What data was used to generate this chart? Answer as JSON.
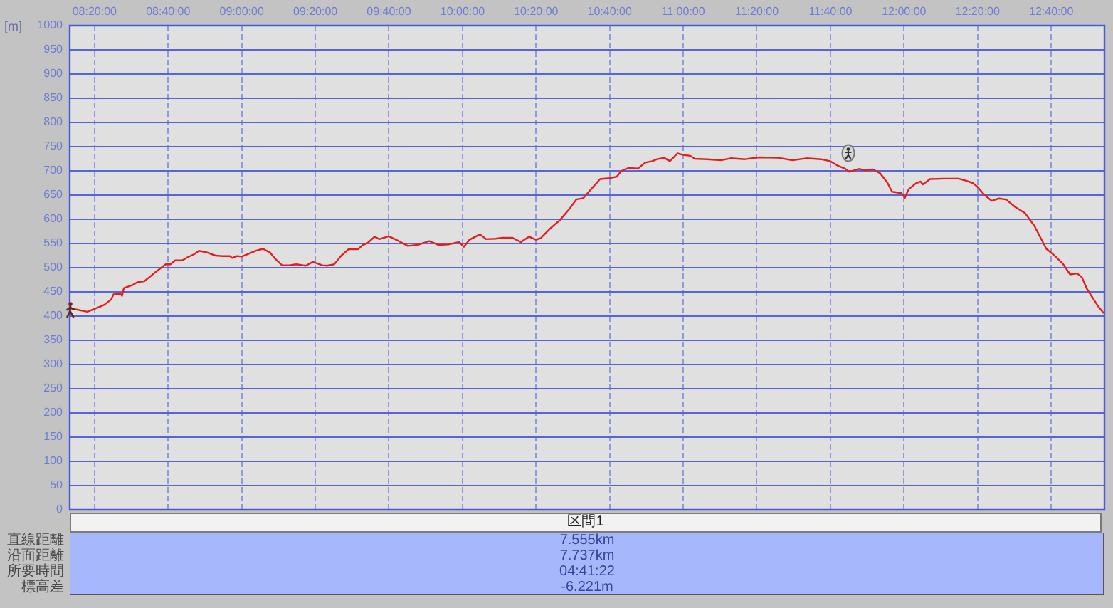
{
  "chart_data": {
    "type": "line",
    "ylabel": "[m]",
    "x": [
      8.2213,
      8.2472,
      8.3008,
      8.3333,
      8.3762,
      8.4083,
      8.4192,
      8.4514,
      8.4579,
      8.4665,
      8.5052,
      8.5267,
      8.559,
      8.5805,
      8.6127,
      8.6557,
      8.6772,
      8.6987,
      8.731,
      8.7525,
      8.7847,
      8.8062,
      8.8385,
      8.8815,
      8.9138,
      8.946,
      8.9567,
      8.9783,
      8.9997,
      9.032,
      9.0643,
      9.0965,
      9.1288,
      9.1503,
      9.1825,
      9.2148,
      9.247,
      9.29,
      9.3223,
      9.3653,
      9.3868,
      9.419,
      9.4513,
      9.4835,
      9.5267,
      9.5482,
      9.5697,
      9.6018,
      9.6233,
      9.6663,
      9.6987,
      9.7523,
      9.7953,
      9.8492,
      9.8922,
      9.9352,
      9.9847,
      10.0062,
      10.032,
      10.0792,
      10.1072,
      10.1502,
      10.1825,
      10.2255,
      10.2642,
      10.3008,
      10.333,
      10.3545,
      10.3975,
      10.4405,
      10.4835,
      10.5158,
      10.548,
      10.5803,
      10.6233,
      10.6663,
      10.6985,
      10.72,
      10.7523,
      10.7953,
      10.8277,
      10.8598,
      10.8813,
      10.9137,
      10.9393,
      10.9738,
      10.9997,
      11.0318,
      11.0533,
      11.1072,
      11.1717,
      11.2147,
      11.2792,
      11.3437,
      11.4297,
      11.4942,
      11.5587,
      11.6233,
      11.6663,
      11.6985,
      11.7308,
      11.7523,
      11.7953,
      11.8275,
      11.8598,
      11.892,
      11.9243,
      11.9458,
      11.9888,
      12.0038,
      12.021,
      12.0533,
      12.0748,
      12.0855,
      12.1178,
      12.1823,
      12.2468,
      12.2792,
      12.3113,
      12.3328,
      12.3652,
      12.3973,
      12.4297,
      12.4618,
      12.5048,
      12.5478,
      12.591,
      12.6447,
      12.677,
      12.72,
      12.7523,
      12.7845,
      12.806,
      12.8275,
      12.8598,
      12.8813,
      12.9028
    ],
    "values": [
      417,
      414,
      409,
      415,
      423,
      434,
      445,
      446,
      442,
      458,
      464,
      470,
      472,
      480,
      492,
      507,
      507,
      515,
      515,
      521,
      528,
      535,
      532,
      525,
      524,
      524,
      520,
      524,
      523,
      529,
      535,
      539,
      531,
      519,
      505,
      505,
      507,
      504,
      512,
      505,
      504,
      507,
      525,
      538,
      538,
      547,
      551,
      564,
      559,
      565,
      558,
      545,
      547,
      555,
      547,
      548,
      553,
      543,
      558,
      569,
      559,
      560,
      562,
      562,
      553,
      564,
      558,
      561,
      581,
      598,
      621,
      641,
      644,
      661,
      683,
      685,
      688,
      700,
      706,
      705,
      717,
      720,
      724,
      727,
      720,
      736,
      733,
      731,
      725,
      724,
      722,
      726,
      724,
      728,
      727,
      722,
      726,
      724,
      720,
      711,
      705,
      698,
      704,
      701,
      703,
      695,
      676,
      657,
      654,
      644,
      662,
      674,
      678,
      672,
      683,
      684,
      684,
      680,
      675,
      667,
      650,
      638,
      643,
      641,
      625,
      613,
      586,
      539,
      527,
      508,
      486,
      488,
      480,
      457,
      434,
      419,
      407
    ],
    "color": "#e02020",
    "xlim": [
      8.221,
      12.908
    ],
    "ylim": [
      0,
      1000
    ],
    "xticks": [
      {
        "value": 8.3333,
        "label": "08:20:00"
      },
      {
        "value": 8.6667,
        "label": "08:40:00"
      },
      {
        "value": 9,
        "label": "09:00:00"
      },
      {
        "value": 9.3333,
        "label": "09:20:00"
      },
      {
        "value": 9.6667,
        "label": "09:40:00"
      },
      {
        "value": 10,
        "label": "10:00:00"
      },
      {
        "value": 10.3333,
        "label": "10:20:00"
      },
      {
        "value": 10.6667,
        "label": "10:40:00"
      },
      {
        "value": 11,
        "label": "11:00:00"
      },
      {
        "value": 11.3333,
        "label": "11:20:00"
      },
      {
        "value": 11.6667,
        "label": "11:40:00"
      },
      {
        "value": 12,
        "label": "12:00:00"
      },
      {
        "value": 12.3333,
        "label": "12:20:00"
      },
      {
        "value": 12.6667,
        "label": "12:40:00"
      }
    ],
    "yticks": [
      0,
      50,
      100,
      150,
      200,
      250,
      300,
      350,
      400,
      450,
      500,
      550,
      600,
      650,
      700,
      750,
      800,
      850,
      900,
      950,
      1000
    ],
    "grid": true,
    "annotations": [
      "区間1",
      "直線距離",
      "7.555km",
      "沿面距離",
      "7.737km",
      "所要時間",
      "04:41:22",
      "標高差",
      "-6.221m"
    ]
  }
}
